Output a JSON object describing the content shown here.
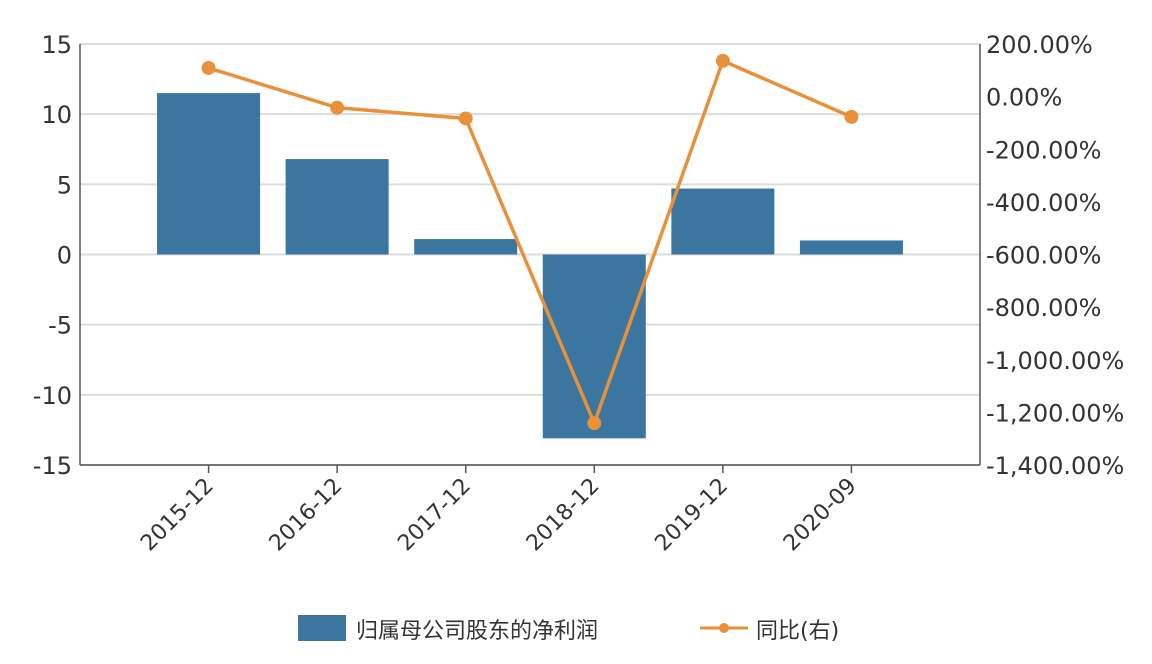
{
  "chart_data": {
    "type": "bar",
    "title": "",
    "categories": [
      "2015-12",
      "2016-12",
      "2017-12",
      "2018-12",
      "2019-12",
      "2020-09"
    ],
    "series": [
      {
        "name": "归属母公司股东的净利润",
        "type": "bar",
        "axis": "left",
        "color": "#3a76a0",
        "values": [
          11.5,
          6.8,
          1.1,
          -13.1,
          4.7,
          1.0
        ]
      },
      {
        "name": "同比(右)",
        "type": "line",
        "axis": "right",
        "color": "#e8913a",
        "values": [
          109,
          -42,
          -83,
          -1241,
          136,
          -77
        ]
      }
    ],
    "left_axis": {
      "ylim": [
        -15,
        15
      ],
      "ticks": [
        "15",
        "10",
        "5",
        "0",
        "-5",
        "-10",
        "-15"
      ],
      "tick_values": [
        15,
        10,
        5,
        0,
        -5,
        -10,
        -15
      ]
    },
    "right_axis": {
      "ylim": [
        -1400,
        200
      ],
      "ticks": [
        "200.00%",
        "0.00%",
        "-200.00%",
        "-400.00%",
        "-600.00%",
        "-800.00%",
        "-1,000.00%",
        "-1,200.00%",
        "-1,400.00%"
      ],
      "tick_values": [
        200,
        0,
        -200,
        -400,
        -600,
        -800,
        -1000,
        -1200,
        -1400
      ]
    },
    "grid": true,
    "legend_position": "bottom"
  }
}
